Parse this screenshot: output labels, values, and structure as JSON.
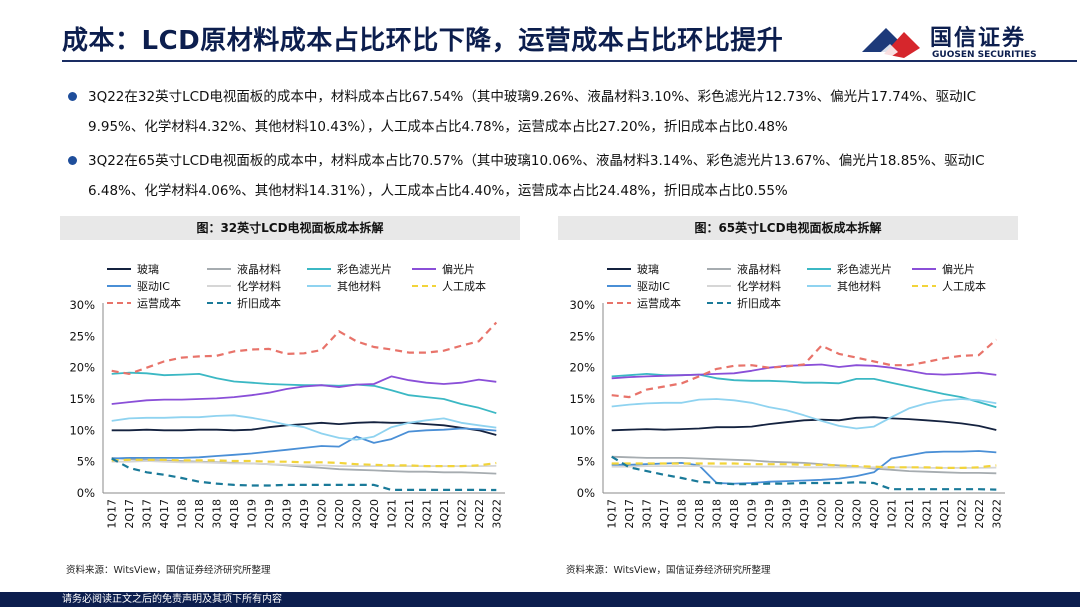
{
  "header": {
    "title": "成本：LCD原材料成本占比环比下降，运营成本占比环比提升",
    "logo_cn": "国信证券",
    "logo_en": "GUOSEN SECURITIES"
  },
  "bullets": [
    "3Q22在32英寸LCD电视面板的成本中，材料成本占比67.54%（其中玻璃9.26%、液晶材料3.10%、彩色滤光片12.73%、偏光片17.74%、驱动IC 9.95%、化学材料4.32%、其他材料10.43%），人工成本占比4.78%，运营成本占比27.20%，折旧成本占比0.48%",
    "3Q22在65英寸LCD电视面板的成本中，材料成本占比70.57%（其中玻璃10.06%、液晶材料3.14%、彩色滤光片13.67%、偏光片18.85%、驱动IC 6.48%、化学材料4.06%、其他材料14.31%），人工成本占比4.40%，运营成本占比24.48%，折旧成本占比0.55%"
  ],
  "footer": {
    "disclaimer": "请务必阅读正文之后的免责声明及其项下所有内容"
  },
  "chart_data": [
    {
      "type": "line",
      "panel_title": "图：32英寸LCD电视面板成本拆解",
      "source": "资料来源：WitsView，国信证券经济研究所整理",
      "categories": [
        "1Q17",
        "2Q17",
        "3Q17",
        "4Q17",
        "1Q18",
        "2Q18",
        "3Q18",
        "4Q18",
        "1Q19",
        "2Q19",
        "3Q19",
        "4Q19",
        "1Q20",
        "2Q20",
        "3Q20",
        "4Q20",
        "1Q21",
        "2Q21",
        "3Q21",
        "4Q21",
        "1Q22",
        "2Q22",
        "3Q22"
      ],
      "ylim": [
        0,
        30
      ],
      "yticks": [
        "0%",
        "5%",
        "10%",
        "15%",
        "20%",
        "25%",
        "30%"
      ],
      "series": [
        {
          "name": "玻璃",
          "color": "#14223f",
          "dash": "solid",
          "values": [
            10.0,
            10.0,
            10.1,
            10.0,
            10.0,
            10.1,
            10.1,
            10.0,
            10.1,
            10.5,
            10.8,
            11.0,
            11.2,
            11.0,
            11.2,
            11.3,
            11.2,
            11.2,
            11.0,
            10.8,
            10.4,
            10.0,
            9.26
          ]
        },
        {
          "name": "液晶材料",
          "color": "#a6acb0",
          "dash": "solid",
          "values": [
            5.6,
            5.4,
            5.3,
            5.2,
            5.1,
            5.0,
            4.9,
            4.8,
            4.7,
            4.6,
            4.4,
            4.2,
            4.0,
            3.8,
            3.7,
            3.6,
            3.5,
            3.4,
            3.4,
            3.3,
            3.3,
            3.2,
            3.1
          ]
        },
        {
          "name": "彩色滤光片",
          "color": "#3bb8c4",
          "dash": "solid",
          "values": [
            19.0,
            19.2,
            19.1,
            18.8,
            18.9,
            19.0,
            18.3,
            17.8,
            17.6,
            17.4,
            17.3,
            17.2,
            17.2,
            17.1,
            17.3,
            17.1,
            16.4,
            15.6,
            15.3,
            15.0,
            14.2,
            13.6,
            12.73
          ]
        },
        {
          "name": "偏光片",
          "color": "#8a4fd8",
          "dash": "solid",
          "values": [
            14.2,
            14.5,
            14.8,
            14.9,
            14.9,
            15.0,
            15.1,
            15.3,
            15.6,
            16.0,
            16.6,
            17.0,
            17.2,
            16.9,
            17.3,
            17.4,
            18.6,
            18.0,
            17.6,
            17.4,
            17.6,
            18.1,
            17.74
          ]
        },
        {
          "name": "驱动IC",
          "color": "#4a8fd6",
          "dash": "solid",
          "values": [
            5.5,
            5.6,
            5.6,
            5.6,
            5.6,
            5.7,
            5.9,
            6.1,
            6.3,
            6.6,
            6.9,
            7.2,
            7.5,
            7.4,
            9.0,
            8.0,
            8.6,
            9.8,
            10.0,
            10.1,
            10.3,
            10.2,
            9.95
          ]
        },
        {
          "name": "化学材料",
          "color": "#d6d6d6",
          "dash": "solid",
          "values": [
            5.0,
            5.0,
            5.1,
            5.0,
            4.9,
            4.9,
            4.8,
            4.7,
            4.7,
            4.6,
            4.5,
            4.4,
            4.4,
            4.3,
            4.3,
            4.3,
            4.3,
            4.3,
            4.3,
            4.3,
            4.3,
            4.3,
            4.32
          ]
        },
        {
          "name": "其他材料",
          "color": "#8fd3f0",
          "dash": "solid",
          "values": [
            11.5,
            11.9,
            12.0,
            12.0,
            12.1,
            12.1,
            12.3,
            12.4,
            12.0,
            11.5,
            10.9,
            10.5,
            9.5,
            8.8,
            8.5,
            9.0,
            10.5,
            11.2,
            11.6,
            11.9,
            11.2,
            10.8,
            10.43
          ]
        },
        {
          "name": "人工成本",
          "color": "#f2d43a",
          "dash": "dash",
          "values": [
            5.2,
            5.3,
            5.3,
            5.3,
            5.2,
            5.2,
            5.2,
            5.1,
            5.1,
            5.0,
            5.0,
            4.9,
            4.9,
            4.8,
            4.6,
            4.5,
            4.4,
            4.4,
            4.3,
            4.3,
            4.3,
            4.4,
            4.78
          ]
        },
        {
          "name": "运营成本",
          "color": "#e8736a",
          "dash": "dash",
          "values": [
            19.5,
            19.0,
            20.0,
            21.0,
            21.6,
            21.8,
            21.9,
            22.6,
            22.9,
            23.0,
            22.2,
            22.3,
            22.8,
            25.8,
            24.2,
            23.3,
            22.9,
            22.4,
            22.4,
            22.7,
            23.5,
            24.2,
            27.2
          ]
        },
        {
          "name": "折旧成本",
          "color": "#1a7a99",
          "dash": "dash",
          "values": [
            5.5,
            4.0,
            3.3,
            2.9,
            2.4,
            1.8,
            1.5,
            1.3,
            1.2,
            1.2,
            1.3,
            1.3,
            1.3,
            1.3,
            1.3,
            1.3,
            0.5,
            0.5,
            0.5,
            0.5,
            0.5,
            0.5,
            0.48
          ]
        }
      ]
    },
    {
      "type": "line",
      "panel_title": "图：65英寸LCD电视面板成本拆解",
      "source": "资料来源：WitsView，国信证券经济研究所整理",
      "categories": [
        "1Q17",
        "2Q17",
        "3Q17",
        "4Q17",
        "1Q18",
        "2Q18",
        "3Q18",
        "4Q18",
        "1Q19",
        "2Q19",
        "3Q19",
        "4Q19",
        "1Q20",
        "2Q20",
        "3Q20",
        "4Q20",
        "1Q21",
        "2Q21",
        "3Q21",
        "4Q21",
        "1Q22",
        "2Q22",
        "3Q22"
      ],
      "ylim": [
        0,
        30
      ],
      "yticks": [
        "0%",
        "5%",
        "10%",
        "15%",
        "20%",
        "25%",
        "30%"
      ],
      "series": [
        {
          "name": "玻璃",
          "color": "#14223f",
          "dash": "solid",
          "values": [
            10.0,
            10.1,
            10.2,
            10.1,
            10.2,
            10.3,
            10.5,
            10.5,
            10.6,
            11.0,
            11.3,
            11.6,
            11.7,
            11.6,
            12.0,
            12.1,
            11.9,
            11.8,
            11.6,
            11.4,
            11.1,
            10.7,
            10.06
          ]
        },
        {
          "name": "液晶材料",
          "color": "#a6acb0",
          "dash": "solid",
          "values": [
            5.8,
            5.7,
            5.6,
            5.6,
            5.6,
            5.5,
            5.4,
            5.3,
            5.2,
            5.0,
            4.9,
            4.8,
            4.6,
            4.4,
            4.2,
            3.9,
            3.7,
            3.5,
            3.4,
            3.3,
            3.2,
            3.2,
            3.14
          ]
        },
        {
          "name": "彩色滤光片",
          "color": "#3bb8c4",
          "dash": "solid",
          "values": [
            18.6,
            18.8,
            19.0,
            18.8,
            18.8,
            18.9,
            18.3,
            18.0,
            17.9,
            17.9,
            17.8,
            17.6,
            17.6,
            17.5,
            18.2,
            18.2,
            17.6,
            17.0,
            16.4,
            15.8,
            15.3,
            14.5,
            13.67
          ]
        },
        {
          "name": "偏光片",
          "color": "#8a4fd8",
          "dash": "solid",
          "values": [
            18.3,
            18.5,
            18.6,
            18.7,
            18.8,
            18.9,
            19.0,
            19.1,
            19.5,
            20.0,
            20.3,
            20.4,
            20.5,
            20.1,
            20.4,
            20.3,
            20.0,
            19.5,
            19.0,
            18.9,
            19.0,
            19.2,
            18.85
          ]
        },
        {
          "name": "驱动IC",
          "color": "#4a8fd6",
          "dash": "solid",
          "values": [
            4.5,
            4.5,
            4.6,
            4.7,
            4.8,
            4.4,
            1.6,
            1.5,
            1.6,
            1.8,
            1.9,
            2.0,
            2.1,
            2.3,
            2.7,
            3.3,
            5.5,
            6.0,
            6.5,
            6.6,
            6.6,
            6.7,
            6.48
          ]
        },
        {
          "name": "化学材料",
          "color": "#d6d6d6",
          "dash": "solid",
          "values": [
            4.2,
            4.2,
            4.3,
            4.3,
            4.3,
            4.3,
            4.2,
            4.2,
            4.2,
            4.2,
            4.2,
            4.1,
            4.1,
            4.1,
            4.1,
            4.1,
            4.1,
            4.1,
            4.0,
            4.0,
            4.0,
            4.0,
            4.06
          ]
        },
        {
          "name": "其他材料",
          "color": "#8fd3f0",
          "dash": "solid",
          "values": [
            13.8,
            14.1,
            14.3,
            14.4,
            14.4,
            14.9,
            15.0,
            14.8,
            14.4,
            13.7,
            13.2,
            12.4,
            11.5,
            10.7,
            10.3,
            10.6,
            12.1,
            13.5,
            14.3,
            14.8,
            15.0,
            14.8,
            14.31
          ]
        },
        {
          "name": "人工成本",
          "color": "#f2d43a",
          "dash": "dash",
          "values": [
            4.7,
            4.7,
            4.7,
            4.7,
            4.7,
            4.7,
            4.7,
            4.7,
            4.6,
            4.6,
            4.6,
            4.5,
            4.5,
            4.4,
            4.3,
            4.2,
            4.1,
            4.1,
            4.1,
            4.0,
            4.0,
            4.1,
            4.4
          ]
        },
        {
          "name": "运营成本",
          "color": "#e8736a",
          "dash": "dash",
          "values": [
            15.6,
            15.3,
            16.5,
            17.0,
            17.5,
            18.6,
            19.8,
            20.3,
            20.4,
            20.0,
            20.2,
            20.5,
            23.5,
            22.2,
            21.6,
            21.0,
            20.4,
            20.4,
            20.9,
            21.5,
            21.9,
            22.0,
            24.48
          ]
        },
        {
          "name": "折旧成本",
          "color": "#1a7a99",
          "dash": "dash",
          "values": [
            5.8,
            4.1,
            3.5,
            2.9,
            2.4,
            1.8,
            1.6,
            1.4,
            1.4,
            1.5,
            1.5,
            1.6,
            1.6,
            1.6,
            1.7,
            1.6,
            0.6,
            0.6,
            0.6,
            0.6,
            0.6,
            0.6,
            0.55
          ]
        }
      ]
    }
  ]
}
